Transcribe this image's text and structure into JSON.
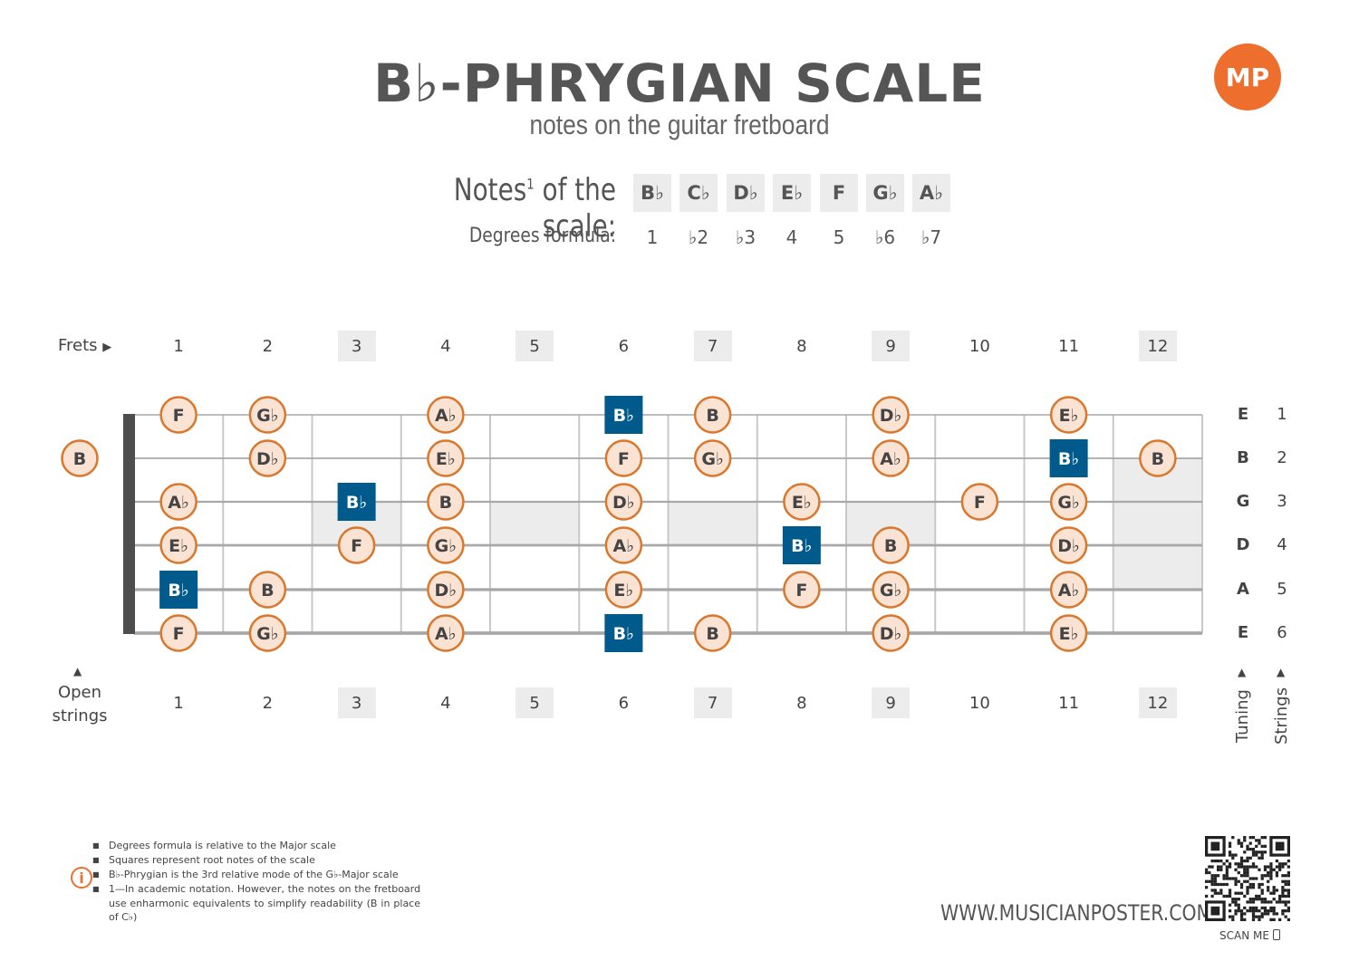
{
  "header": {
    "title": "B♭-PHRYGIAN SCALE",
    "subtitle": "notes on the guitar fretboard",
    "logo_text": "MP"
  },
  "scale": {
    "notes_label": "Notes",
    "notes_label_sup": "1",
    "notes_label_suffix": " of the scale:",
    "notes": [
      "B♭",
      "C♭",
      "D♭",
      "E♭",
      "F",
      "G♭",
      "A♭"
    ],
    "degrees_label": "Degrees formula:",
    "degrees": [
      "1",
      "♭2",
      "♭3",
      "4",
      "5",
      "♭6",
      "♭7"
    ]
  },
  "fretboard": {
    "frets_label": "Frets",
    "open_label_line1": "Open",
    "open_label_line2": "strings",
    "frets": [
      "1",
      "2",
      "3",
      "4",
      "5",
      "6",
      "7",
      "8",
      "9",
      "10",
      "11",
      "12"
    ],
    "shaded_frets": [
      3,
      5,
      7,
      9,
      12
    ],
    "tuning": [
      "E",
      "B",
      "G",
      "D",
      "A",
      "E"
    ],
    "string_numbers": [
      "1",
      "2",
      "3",
      "4",
      "5",
      "6"
    ],
    "tuning_label": "Tuning",
    "strings_label": "Strings",
    "root_color": "#005a8c",
    "note_fill": "#fbe3d4",
    "note_border": "#d9782d",
    "open_notes": [
      {
        "string": 2,
        "note": "B",
        "root": false
      }
    ],
    "notes": [
      {
        "string": 1,
        "fret": 1,
        "note": "F",
        "root": false
      },
      {
        "string": 1,
        "fret": 2,
        "note": "G♭",
        "root": false
      },
      {
        "string": 1,
        "fret": 4,
        "note": "A♭",
        "root": false
      },
      {
        "string": 1,
        "fret": 6,
        "note": "B♭",
        "root": true
      },
      {
        "string": 1,
        "fret": 7,
        "note": "B",
        "root": false
      },
      {
        "string": 1,
        "fret": 9,
        "note": "D♭",
        "root": false
      },
      {
        "string": 1,
        "fret": 11,
        "note": "E♭",
        "root": false
      },
      {
        "string": 2,
        "fret": 2,
        "note": "D♭",
        "root": false
      },
      {
        "string": 2,
        "fret": 4,
        "note": "E♭",
        "root": false
      },
      {
        "string": 2,
        "fret": 6,
        "note": "F",
        "root": false
      },
      {
        "string": 2,
        "fret": 7,
        "note": "G♭",
        "root": false
      },
      {
        "string": 2,
        "fret": 9,
        "note": "A♭",
        "root": false
      },
      {
        "string": 2,
        "fret": 11,
        "note": "B♭",
        "root": true
      },
      {
        "string": 2,
        "fret": 12,
        "note": "B",
        "root": false
      },
      {
        "string": 3,
        "fret": 1,
        "note": "A♭",
        "root": false
      },
      {
        "string": 3,
        "fret": 3,
        "note": "B♭",
        "root": true
      },
      {
        "string": 3,
        "fret": 4,
        "note": "B",
        "root": false
      },
      {
        "string": 3,
        "fret": 6,
        "note": "D♭",
        "root": false
      },
      {
        "string": 3,
        "fret": 8,
        "note": "E♭",
        "root": false
      },
      {
        "string": 3,
        "fret": 10,
        "note": "F",
        "root": false
      },
      {
        "string": 3,
        "fret": 11,
        "note": "G♭",
        "root": false
      },
      {
        "string": 4,
        "fret": 1,
        "note": "E♭",
        "root": false
      },
      {
        "string": 4,
        "fret": 3,
        "note": "F",
        "root": false
      },
      {
        "string": 4,
        "fret": 4,
        "note": "G♭",
        "root": false
      },
      {
        "string": 4,
        "fret": 6,
        "note": "A♭",
        "root": false
      },
      {
        "string": 4,
        "fret": 8,
        "note": "B♭",
        "root": true
      },
      {
        "string": 4,
        "fret": 9,
        "note": "B",
        "root": false
      },
      {
        "string": 4,
        "fret": 11,
        "note": "D♭",
        "root": false
      },
      {
        "string": 5,
        "fret": 1,
        "note": "B♭",
        "root": true
      },
      {
        "string": 5,
        "fret": 2,
        "note": "B",
        "root": false
      },
      {
        "string": 5,
        "fret": 4,
        "note": "D♭",
        "root": false
      },
      {
        "string": 5,
        "fret": 6,
        "note": "E♭",
        "root": false
      },
      {
        "string": 5,
        "fret": 8,
        "note": "F",
        "root": false
      },
      {
        "string": 5,
        "fret": 9,
        "note": "G♭",
        "root": false
      },
      {
        "string": 5,
        "fret": 11,
        "note": "A♭",
        "root": false
      },
      {
        "string": 6,
        "fret": 1,
        "note": "F",
        "root": false
      },
      {
        "string": 6,
        "fret": 2,
        "note": "G♭",
        "root": false
      },
      {
        "string": 6,
        "fret": 4,
        "note": "A♭",
        "root": false
      },
      {
        "string": 6,
        "fret": 6,
        "note": "B♭",
        "root": true
      },
      {
        "string": 6,
        "fret": 7,
        "note": "B",
        "root": false
      },
      {
        "string": 6,
        "fret": 9,
        "note": "D♭",
        "root": false
      },
      {
        "string": 6,
        "fret": 11,
        "note": "E♭",
        "root": false
      }
    ]
  },
  "footer": {
    "notes": [
      "Degrees formula is relative to the Major scale",
      "Squares represent root notes of the scale",
      "B♭-Phrygian is the 3rd relative mode of the G♭-Major scale",
      "1—In academic notation. However, the notes on the fretboard use enharmonic equivalents to simplify readability (B in place of C♭)"
    ],
    "website": "WWW.MUSICIANPOSTER.COM",
    "scan_me": "SCAN ME"
  }
}
